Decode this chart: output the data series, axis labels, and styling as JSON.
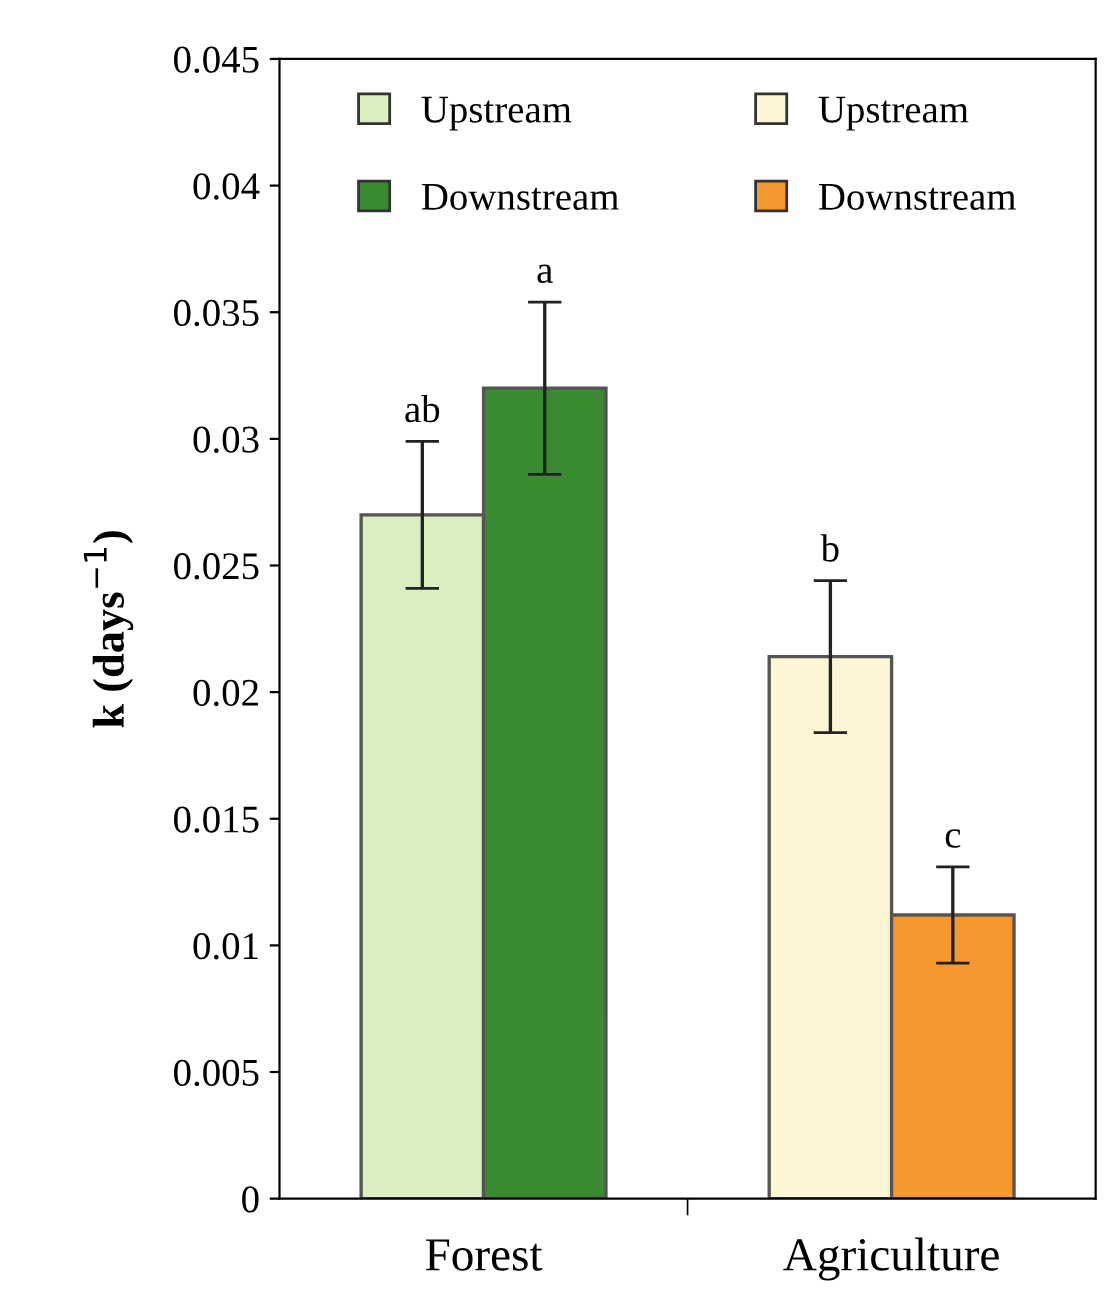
{
  "chart_data": {
    "type": "bar",
    "ylabel": "k (days$^{−1}$)",
    "categories": [
      "Forest",
      "Agriculture"
    ],
    "series": [
      {
        "name": "Upstream",
        "color": "#d9efc0",
        "values": [
          0.027,
          null
        ],
        "errors": [
          0.0029,
          null
        ]
      },
      {
        "name": "Downstream",
        "color": "#3a8a32",
        "values": [
          0.032,
          null
        ],
        "errors": [
          0.0034,
          null
        ]
      },
      {
        "name": "Upstream",
        "color": "#fdf6d4",
        "values": [
          null,
          0.0214
        ],
        "errors": [
          null,
          0.003
        ]
      },
      {
        "name": "Downstream",
        "color": "#f7982f",
        "values": [
          null,
          0.0112
        ],
        "errors": [
          null,
          0.0019
        ]
      }
    ],
    "ylim": [
      0,
      0.045
    ],
    "yticks": [
      0,
      0.005,
      0.01,
      0.015,
      0.02,
      0.025,
      0.03,
      0.035,
      0.04,
      0.045
    ],
    "annotations": [
      "ab",
      "a",
      "b",
      "c"
    ],
    "legend": "top",
    "grid": false
  }
}
